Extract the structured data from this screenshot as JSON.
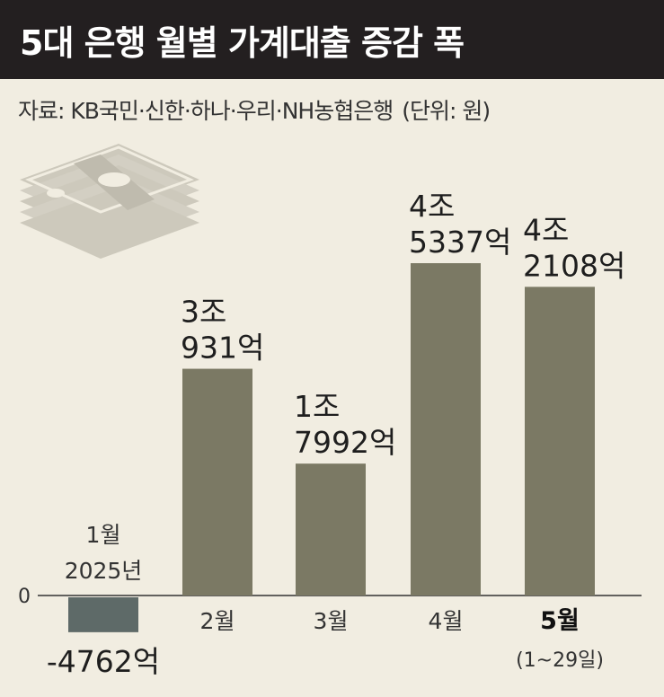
{
  "header": {
    "title": "5대 은행 월별 가계대출 증감 폭",
    "source": "자료: KB국민·신한·하나·우리·NH농협은행",
    "unit": "(단위: 원)"
  },
  "icon": "money-stack-icon",
  "colors": {
    "background": "#f1ede1",
    "title_bar": "#231f20",
    "positive_bar": "#7b7964",
    "negative_bar": "#5e6a68",
    "icon": "#c9c5b8"
  },
  "chart_data": {
    "type": "bar",
    "categories": [
      "1월",
      "2월",
      "3월",
      "4월",
      "5월"
    ],
    "values": [
      -4762,
      30931,
      17992,
      45337,
      42108
    ],
    "unit": "억 원",
    "value_labels": [
      [
        "-4762억"
      ],
      [
        "3조",
        "931억"
      ],
      [
        "1조",
        "7992억"
      ],
      [
        "4조",
        "5337억"
      ],
      [
        "4조",
        "2108억"
      ]
    ],
    "category_year": "2025년",
    "category_note": "(1~29일)",
    "zero_label": "0",
    "ylim": [
      -6000,
      48000
    ],
    "grid": false
  }
}
